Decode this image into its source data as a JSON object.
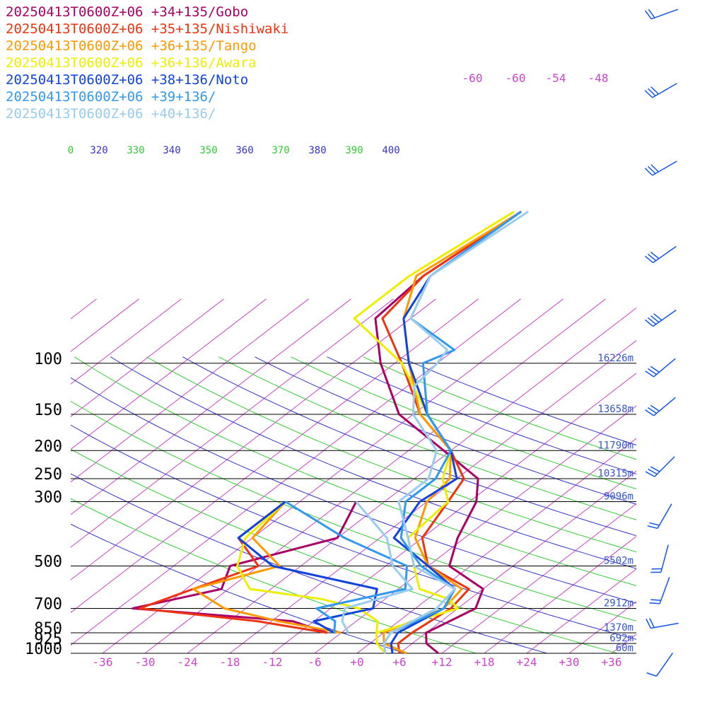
{
  "chart_data": {
    "type": "line",
    "title": "",
    "xlabel": "",
    "ylabel": "",
    "x_axis": {
      "ticks": [
        "-36",
        "-30",
        "-24",
        "-18",
        "-12",
        "-6",
        "+0",
        "+6",
        "+12",
        "+18",
        "+24",
        "+30",
        "+36"
      ],
      "values": [
        -36,
        -30,
        -24,
        -18,
        -12,
        -6,
        0,
        6,
        12,
        18,
        24,
        30,
        36
      ]
    },
    "upper_temp_labels": [
      {
        "label": "-60",
        "value": -60
      },
      {
        "label": "-60",
        "value": -60
      },
      {
        "label": "-54",
        "value": -54
      },
      {
        "label": "-48",
        "value": -48
      }
    ],
    "pressure_levels": [
      {
        "label": "100",
        "p": 100,
        "height": "16226m"
      },
      {
        "label": "150",
        "p": 150,
        "height": "13658m"
      },
      {
        "label": "200",
        "p": 200,
        "height": "11790m"
      },
      {
        "label": "250",
        "p": 250,
        "height": "10315m"
      },
      {
        "label": "300",
        "p": 300,
        "height": "9096m"
      },
      {
        "label": "500",
        "p": 500,
        "height": "5502m"
      },
      {
        "label": "700",
        "p": 700,
        "height": "2912m"
      },
      {
        "label": "850",
        "p": 850,
        "height": "1370m"
      },
      {
        "label": "925",
        "p": 925,
        "height": "692m"
      },
      {
        "label": "1000",
        "p": 1000,
        "height": "60m"
      }
    ],
    "theta_labels": [
      "0",
      "320",
      "330",
      "340",
      "350",
      "360",
      "370",
      "380",
      "390",
      "400"
    ],
    "theta_colors": {
      "even": "#3333cc",
      "odd": "#33cc33"
    },
    "isotherm_color": "#cc44cc",
    "series": [
      {
        "name": "20250413T0600Z+06 +34+135/Gobo",
        "color": "#aa0066",
        "points": [
          [
            1000,
            11.5
          ],
          [
            925,
            8
          ],
          [
            850,
            6
          ],
          [
            700,
            8.5
          ],
          [
            600,
            6
          ],
          [
            500,
            -3
          ],
          [
            400,
            -7
          ],
          [
            300,
            -11
          ],
          [
            250,
            -15
          ],
          [
            200,
            -25
          ],
          [
            150,
            -38
          ],
          [
            100,
            -50
          ],
          [
            70,
            -59
          ],
          [
            50,
            -60
          ],
          [
            30,
            -58
          ]
        ],
        "dew": [
          [
            850,
            -8
          ],
          [
            775,
            -15
          ],
          [
            700,
            -40
          ],
          [
            600,
            -31
          ],
          [
            500,
            -34
          ],
          [
            400,
            -24
          ],
          [
            300,
            -28
          ]
        ]
      },
      {
        "name": "20250413T0600Z+06 +35+135/Nishiwaki",
        "color": "#ee3311",
        "points": [
          [
            1000,
            6
          ],
          [
            925,
            4
          ],
          [
            850,
            4
          ],
          [
            700,
            5
          ],
          [
            600,
            4
          ],
          [
            500,
            -6
          ],
          [
            400,
            -12
          ],
          [
            300,
            -15
          ],
          [
            250,
            -17
          ],
          [
            200,
            -24
          ],
          [
            150,
            -35
          ],
          [
            100,
            -47
          ],
          [
            70,
            -58
          ],
          [
            50,
            -60
          ],
          [
            30,
            -58
          ]
        ],
        "dew": [
          [
            850,
            -8
          ],
          [
            775,
            -20
          ],
          [
            700,
            -39
          ],
          [
            600,
            -35
          ],
          [
            500,
            -30
          ],
          [
            400,
            -38
          ],
          [
            300,
            -38
          ]
        ]
      },
      {
        "name": "20250413T0600Z+06 +36+135/Tango",
        "color": "#ff9900",
        "points": [
          [
            1000,
            7
          ],
          [
            925,
            2
          ],
          [
            850,
            0
          ],
          [
            700,
            4
          ],
          [
            600,
            3
          ],
          [
            500,
            -6
          ],
          [
            400,
            -13
          ],
          [
            300,
            -18
          ],
          [
            250,
            -19
          ],
          [
            200,
            -24
          ],
          [
            150,
            -35
          ],
          [
            100,
            -46
          ],
          [
            70,
            -55
          ],
          [
            50,
            -61
          ],
          [
            30,
            -58
          ]
        ],
        "dew": [
          [
            850,
            -6
          ],
          [
            775,
            -17
          ],
          [
            700,
            -27
          ],
          [
            600,
            -35
          ],
          [
            500,
            -27
          ],
          [
            400,
            -36
          ],
          [
            300,
            -38
          ]
        ]
      },
      {
        "name": "20250413T0600Z+06 +36+136/Awara",
        "color": "#eeee00",
        "points": [
          [
            1000,
            4
          ],
          [
            925,
            1
          ],
          [
            850,
            -1
          ],
          [
            700,
            6
          ],
          [
            650,
            3
          ],
          [
            600,
            -3
          ],
          [
            500,
            -8
          ],
          [
            400,
            -14
          ],
          [
            300,
            -15
          ],
          [
            250,
            -20
          ],
          [
            200,
            -24
          ],
          [
            150,
            -34
          ],
          [
            100,
            -47
          ],
          [
            70,
            -62
          ],
          [
            50,
            -62
          ],
          [
            30,
            -59
          ]
        ],
        "dew": [
          [
            850,
            -1
          ],
          [
            775,
            -3
          ],
          [
            700,
            -8
          ],
          [
            650,
            -15
          ],
          [
            600,
            -27
          ],
          [
            500,
            -33
          ],
          [
            400,
            -37
          ],
          [
            300,
            -38
          ]
        ]
      },
      {
        "name": "20250413T0600Z+06 +38+136/Noto",
        "color": "#1144dd",
        "points": [
          [
            1000,
            5
          ],
          [
            925,
            3
          ],
          [
            850,
            2
          ],
          [
            700,
            4
          ],
          [
            600,
            2
          ],
          [
            500,
            -6
          ],
          [
            400,
            -16
          ],
          [
            300,
            -19
          ],
          [
            250,
            -18
          ],
          [
            200,
            -24
          ],
          [
            150,
            -34
          ],
          [
            100,
            -46
          ],
          [
            70,
            -55
          ],
          [
            50,
            -59
          ],
          [
            30,
            -58
          ]
        ],
        "dew": [
          [
            850,
            -7
          ],
          [
            775,
            -12
          ],
          [
            700,
            -6
          ],
          [
            600,
            -9
          ],
          [
            500,
            -28
          ],
          [
            400,
            -38
          ],
          [
            300,
            -38
          ]
        ]
      },
      {
        "name": "20250413T0600Z+06 +39+136/",
        "color": "#3399ee",
        "points": [
          [
            1000,
            4
          ],
          [
            925,
            2
          ],
          [
            850,
            1
          ],
          [
            700,
            4
          ],
          [
            600,
            2
          ],
          [
            500,
            -7
          ],
          [
            400,
            -15
          ],
          [
            300,
            -21
          ],
          [
            250,
            -21
          ],
          [
            200,
            -24
          ],
          [
            150,
            -34
          ],
          [
            100,
            -44
          ],
          [
            90,
            -42
          ],
          [
            70,
            -54
          ],
          [
            50,
            -59
          ],
          [
            30,
            -58
          ]
        ],
        "dew": [
          [
            850,
            -7
          ],
          [
            775,
            -9
          ],
          [
            700,
            -14
          ],
          [
            600,
            -5
          ],
          [
            500,
            -9
          ],
          [
            400,
            -23
          ],
          [
            300,
            -38
          ]
        ]
      },
      {
        "name": "20250413T0600Z+06 +40+136/",
        "color": "#99ccee",
        "points": [
          [
            1000,
            4
          ],
          [
            925,
            2
          ],
          [
            850,
            1
          ],
          [
            700,
            3
          ],
          [
            600,
            2
          ],
          [
            500,
            -8
          ],
          [
            400,
            -14
          ],
          [
            300,
            -22
          ],
          [
            250,
            -22
          ],
          [
            200,
            -26
          ],
          [
            150,
            -36
          ],
          [
            120,
            -41
          ],
          [
            100,
            -42
          ],
          [
            90,
            -43
          ],
          [
            70,
            -54
          ],
          [
            50,
            -59
          ],
          [
            30,
            -57
          ]
        ],
        "dew": [
          [
            850,
            -5
          ],
          [
            775,
            -8
          ],
          [
            700,
            -10
          ],
          [
            600,
            -4
          ],
          [
            500,
            -11
          ],
          [
            400,
            -17
          ],
          [
            300,
            -28
          ]
        ]
      }
    ],
    "wind_barbs": [
      {
        "y": 20,
        "dir": 70,
        "len": 2
      },
      {
        "y": 128,
        "dir": 60,
        "len": 3
      },
      {
        "y": 238,
        "dir": 60,
        "len": 3
      },
      {
        "y": 360,
        "dir": 55,
        "len": 3
      },
      {
        "y": 450,
        "dir": 55,
        "len": 4
      },
      {
        "y": 520,
        "dir": 50,
        "len": 3
      },
      {
        "y": 575,
        "dir": 50,
        "len": 3
      },
      {
        "y": 660,
        "dir": 45,
        "len": 3
      },
      {
        "y": 730,
        "dir": 30,
        "len": 2
      },
      {
        "y": 790,
        "dir": 15,
        "len": 2
      },
      {
        "y": 835,
        "dir": 20,
        "len": 2
      },
      {
        "y": 885,
        "dir": 80,
        "len": 2
      },
      {
        "y": 940,
        "dir": 35,
        "len": 1
      }
    ],
    "barb_color": "#1155ee",
    "grid": true,
    "legend_position": "top-left"
  }
}
